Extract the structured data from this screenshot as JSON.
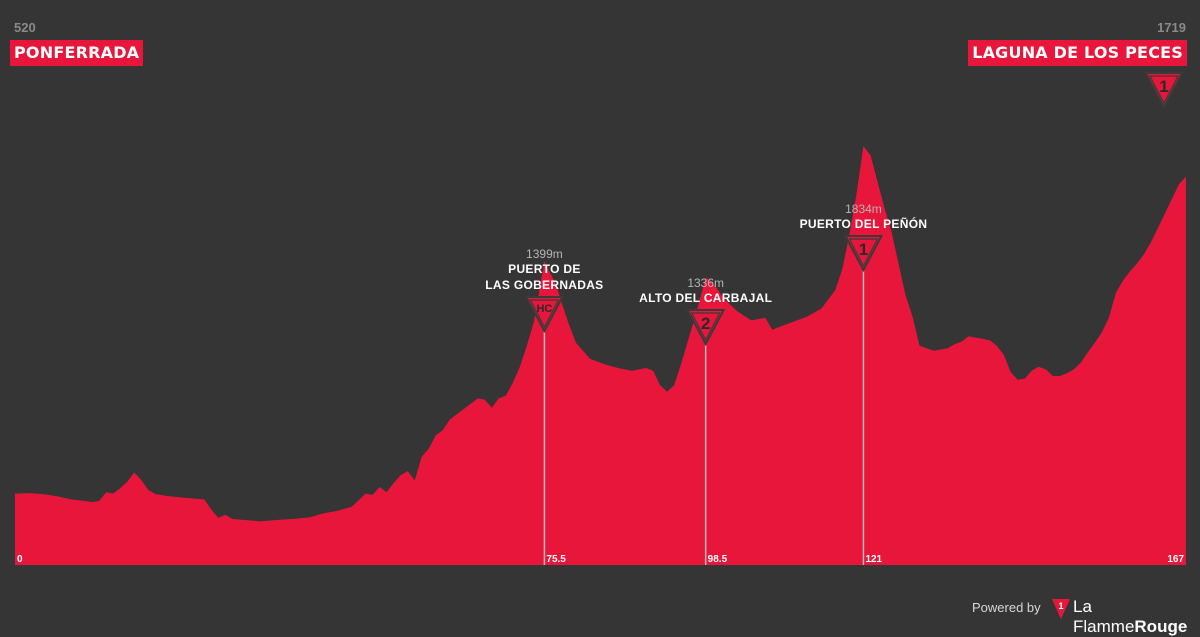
{
  "start": {
    "altitude": "520",
    "name": "PONFERRADA"
  },
  "finish": {
    "altitude": "1719",
    "name": "LAGUNA DE LOS PECES",
    "category": "1"
  },
  "climbs": [
    {
      "altitude": "1399m",
      "name_lines": [
        "PUERTO DE",
        "LAS GOBERNADAS"
      ],
      "category": "HC",
      "km": 75.5
    },
    {
      "altitude": "1336m",
      "name_lines": [
        "ALTO DEL CARBAJAL"
      ],
      "category": "2",
      "km": 98.5
    },
    {
      "altitude": "1834m",
      "name_lines": [
        "PUERTO DEL PEÑÓN"
      ],
      "category": "1",
      "km": 121
    }
  ],
  "footer": {
    "powered_by": "Powered by",
    "brand_main": "La Flamme",
    "brand_accent": "Rouge",
    "logo_digit": "1"
  },
  "colors": {
    "background": "#353535",
    "profile": "#e8163a",
    "marker_line": "#bbbbbb",
    "badge_border": "#3a3a3a"
  },
  "chart_data": {
    "type": "area",
    "x_unit": "km",
    "x_ticks": [
      "0",
      "75.5",
      "98.5",
      "121",
      "167"
    ],
    "xlim": [
      0,
      167
    ],
    "ylim": [
      250,
      2300
    ],
    "points": [
      [
        0,
        520
      ],
      [
        2,
        522
      ],
      [
        4,
        518
      ],
      [
        6,
        510
      ],
      [
        8,
        498
      ],
      [
        10,
        492
      ],
      [
        11,
        488
      ],
      [
        12,
        492
      ],
      [
        13,
        525
      ],
      [
        14,
        520
      ],
      [
        15,
        540
      ],
      [
        16,
        565
      ],
      [
        17,
        600
      ],
      [
        18,
        572
      ],
      [
        19,
        534
      ],
      [
        20,
        518
      ],
      [
        22,
        510
      ],
      [
        24,
        505
      ],
      [
        26,
        500
      ],
      [
        27,
        498
      ],
      [
        28,
        460
      ],
      [
        29,
        428
      ],
      [
        30,
        440
      ],
      [
        31,
        424
      ],
      [
        33,
        420
      ],
      [
        35,
        415
      ],
      [
        37,
        420
      ],
      [
        40,
        425
      ],
      [
        42,
        430
      ],
      [
        44,
        445
      ],
      [
        46,
        455
      ],
      [
        48,
        470
      ],
      [
        49,
        495
      ],
      [
        50,
        520
      ],
      [
        51,
        515
      ],
      [
        52,
        545
      ],
      [
        53,
        525
      ],
      [
        54,
        560
      ],
      [
        55,
        590
      ],
      [
        56,
        605
      ],
      [
        57,
        570
      ],
      [
        58,
        660
      ],
      [
        59,
        690
      ],
      [
        60,
        740
      ],
      [
        61,
        760
      ],
      [
        62,
        800
      ],
      [
        63,
        820
      ],
      [
        64,
        840
      ],
      [
        65,
        860
      ],
      [
        66,
        880
      ],
      [
        67,
        875
      ],
      [
        68,
        845
      ],
      [
        69,
        880
      ],
      [
        70,
        890
      ],
      [
        71,
        940
      ],
      [
        72,
        1000
      ],
      [
        73,
        1080
      ],
      [
        74,
        1170
      ],
      [
        75.5,
        1399
      ],
      [
        76,
        1370
      ],
      [
        77,
        1320
      ],
      [
        78,
        1240
      ],
      [
        79,
        1160
      ],
      [
        80,
        1090
      ],
      [
        82,
        1030
      ],
      [
        84,
        1010
      ],
      [
        86,
        995
      ],
      [
        88,
        985
      ],
      [
        90,
        995
      ],
      [
        91,
        985
      ],
      [
        92,
        930
      ],
      [
        93,
        905
      ],
      [
        94,
        930
      ],
      [
        95,
        1010
      ],
      [
        96,
        1100
      ],
      [
        97,
        1190
      ],
      [
        98.5,
        1336
      ],
      [
        99,
        1330
      ],
      [
        100,
        1300
      ],
      [
        101,
        1260
      ],
      [
        103,
        1210
      ],
      [
        105,
        1175
      ],
      [
        107,
        1185
      ],
      [
        108,
        1140
      ],
      [
        109,
        1150
      ],
      [
        111,
        1170
      ],
      [
        113,
        1190
      ],
      [
        115,
        1220
      ],
      [
        117,
        1290
      ],
      [
        118,
        1370
      ],
      [
        119,
        1500
      ],
      [
        120,
        1650
      ],
      [
        121,
        1834
      ],
      [
        122,
        1800
      ],
      [
        123,
        1700
      ],
      [
        124,
        1600
      ],
      [
        125,
        1510
      ],
      [
        126,
        1390
      ],
      [
        127,
        1270
      ],
      [
        128,
        1190
      ],
      [
        129,
        1080
      ],
      [
        131,
        1060
      ],
      [
        133,
        1070
      ],
      [
        134,
        1085
      ],
      [
        135,
        1095
      ],
      [
        136,
        1115
      ],
      [
        137,
        1110
      ],
      [
        138,
        1105
      ],
      [
        139,
        1100
      ],
      [
        140,
        1080
      ],
      [
        141,
        1045
      ],
      [
        142,
        980
      ],
      [
        143,
        950
      ],
      [
        144,
        955
      ],
      [
        145,
        985
      ],
      [
        146,
        1000
      ],
      [
        147,
        990
      ],
      [
        148,
        965
      ],
      [
        149,
        965
      ],
      [
        150,
        975
      ],
      [
        151,
        990
      ],
      [
        152,
        1015
      ],
      [
        153,
        1055
      ],
      [
        154,
        1090
      ],
      [
        155,
        1130
      ],
      [
        156,
        1185
      ],
      [
        157,
        1280
      ],
      [
        158,
        1325
      ],
      [
        159,
        1360
      ],
      [
        160,
        1390
      ],
      [
        161,
        1425
      ],
      [
        162,
        1470
      ],
      [
        163,
        1525
      ],
      [
        164,
        1580
      ],
      [
        165,
        1635
      ],
      [
        166,
        1690
      ],
      [
        167,
        1719
      ]
    ]
  }
}
